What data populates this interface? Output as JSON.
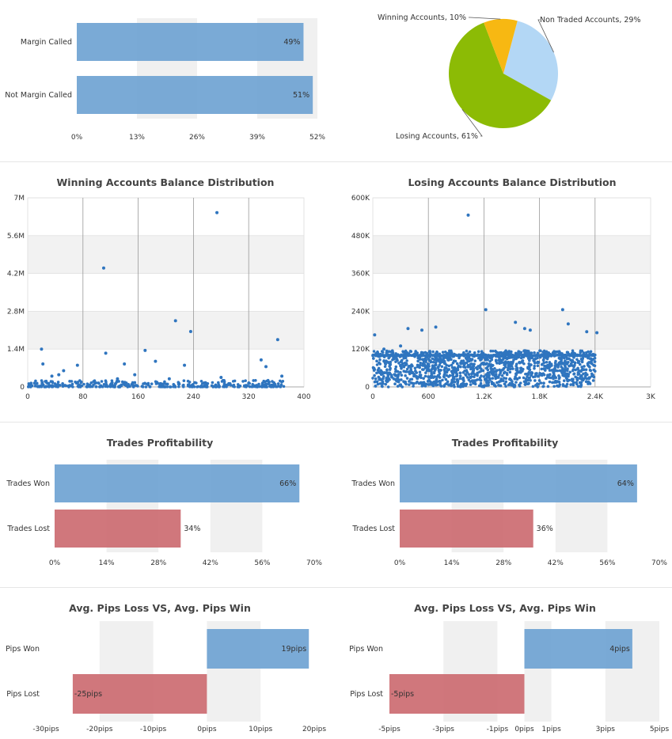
{
  "colors": {
    "blue": "#6fa3d2",
    "red": "#cc6b71",
    "band": "#f0f0f0",
    "gridline": "#d9d9d9",
    "vline": "#999999",
    "dot": "#2f75bf",
    "pie_light_blue": "#b3d7f5",
    "pie_green": "#8cbb05",
    "pie_yellow": "#f7b812"
  },
  "chart_data": [
    {
      "id": "margin",
      "type": "bar",
      "orientation": "horizontal",
      "categories": [
        "Margin Called",
        "Not Margin Called"
      ],
      "values": [
        49,
        51
      ],
      "value_labels": [
        "49%",
        "51%"
      ],
      "x_ticks": [
        "0%",
        "13%",
        "26%",
        "39%",
        "52%"
      ],
      "xlim": [
        0,
        52
      ]
    },
    {
      "id": "accounts_pie",
      "type": "pie",
      "slices": [
        {
          "label": "Non Traded Accounts, 29%",
          "value": 29,
          "color": "#b3d7f5"
        },
        {
          "label": "Losing Accounts, 61%",
          "value": 61,
          "color": "#8cbb05"
        },
        {
          "label": "Winning Accounts, 10%",
          "value": 10,
          "color": "#f7b812"
        }
      ]
    },
    {
      "id": "winning_scatter",
      "type": "scatter",
      "title": "Winning Accounts Balance Distribution",
      "xlim": [
        0,
        400
      ],
      "ylim": [
        0,
        7000000
      ],
      "x_ticks": [
        "0",
        "80",
        "160",
        "240",
        "320",
        "400"
      ],
      "y_ticks": [
        "0",
        "1.4M",
        "2.8M",
        "4.2M",
        "5.6M",
        "7M"
      ],
      "points": [
        [
          20,
          1400000
        ],
        [
          22,
          850000
        ],
        [
          35,
          400000
        ],
        [
          45,
          450000
        ],
        [
          52,
          600000
        ],
        [
          72,
          800000
        ],
        [
          110,
          4400000
        ],
        [
          113,
          1250000
        ],
        [
          130,
          300000
        ],
        [
          140,
          850000
        ],
        [
          155,
          450000
        ],
        [
          170,
          1350000
        ],
        [
          185,
          950000
        ],
        [
          205,
          300000
        ],
        [
          214,
          2450000
        ],
        [
          227,
          800000
        ],
        [
          236,
          2050000
        ],
        [
          274,
          6450000
        ],
        [
          280,
          350000
        ],
        [
          338,
          1000000
        ],
        [
          345,
          750000
        ],
        [
          362,
          1750000
        ],
        [
          368,
          400000
        ]
      ],
      "dense_band": {
        "x_range": [
          0,
          372
        ],
        "y_range": [
          0,
          250000
        ],
        "count": 380
      }
    },
    {
      "id": "losing_scatter",
      "type": "scatter",
      "title": "Losing Accounts Balance Distribution",
      "xlim": [
        0,
        3000
      ],
      "ylim": [
        0,
        600000
      ],
      "x_ticks": [
        "0",
        "600",
        "1.2K",
        "1.8K",
        "2.4K",
        "3K"
      ],
      "y_ticks": [
        "0",
        "120K",
        "240K",
        "360K",
        "480K",
        "600K"
      ],
      "points": [
        [
          20,
          165000
        ],
        [
          120,
          120000
        ],
        [
          300,
          130000
        ],
        [
          380,
          185000
        ],
        [
          530,
          180000
        ],
        [
          680,
          190000
        ],
        [
          1030,
          545000
        ],
        [
          1220,
          245000
        ],
        [
          1540,
          205000
        ],
        [
          1640,
          185000
        ],
        [
          1700,
          180000
        ],
        [
          2050,
          245000
        ],
        [
          2110,
          200000
        ],
        [
          2310,
          175000
        ],
        [
          2420,
          172000
        ]
      ],
      "dense_band": {
        "x_range": [
          0,
          2400
        ],
        "y_range": [
          0,
          115000
        ],
        "count": 1400,
        "line_y": 100000
      }
    },
    {
      "id": "trades_left",
      "type": "bar",
      "orientation": "horizontal",
      "title": "Trades Profitability",
      "categories": [
        "Trades Won",
        "Trades Lost"
      ],
      "values": [
        66,
        34
      ],
      "value_labels": [
        "66%",
        "34%"
      ],
      "x_ticks": [
        "0%",
        "14%",
        "28%",
        "42%",
        "56%",
        "70%"
      ],
      "xlim": [
        0,
        70
      ]
    },
    {
      "id": "trades_right",
      "type": "bar",
      "orientation": "horizontal",
      "title": "Trades Profitability",
      "categories": [
        "Trades Won",
        "Trades Lost"
      ],
      "values": [
        64,
        36
      ],
      "value_labels": [
        "64%",
        "36%"
      ],
      "x_ticks": [
        "0%",
        "14%",
        "28%",
        "42%",
        "56%",
        "70%"
      ],
      "xlim": [
        0,
        70
      ]
    },
    {
      "id": "pips_left",
      "type": "bar",
      "orientation": "horizontal",
      "title": "Avg. Pips Loss VS, Avg. Pips Win",
      "categories": [
        "Pips Won",
        "Pips Lost"
      ],
      "values": [
        19,
        -25
      ],
      "value_labels": [
        "19pips",
        "-25pips"
      ],
      "x_tick_values": [
        -30,
        -20,
        -10,
        0,
        10,
        20
      ],
      "x_ticks": [
        "-30pips",
        "-20pips",
        "-10pips",
        "0pips",
        "10pips",
        "20pips"
      ],
      "xlim": [
        -30,
        20
      ]
    },
    {
      "id": "pips_right",
      "type": "bar",
      "orientation": "horizontal",
      "title": "Avg. Pips Loss VS, Avg. Pips Win",
      "categories": [
        "Pips Won",
        "Pips Lost"
      ],
      "values": [
        4,
        -5
      ],
      "value_labels": [
        "4pips",
        "-5pips"
      ],
      "x_tick_values": [
        -5,
        -3,
        -1,
        0,
        1,
        3,
        5
      ],
      "x_ticks": [
        "-5pips",
        "-3pips",
        "-1pips",
        "0pips",
        "1pips",
        "3pips",
        "5pips"
      ],
      "xlim": [
        -5,
        5
      ]
    }
  ]
}
